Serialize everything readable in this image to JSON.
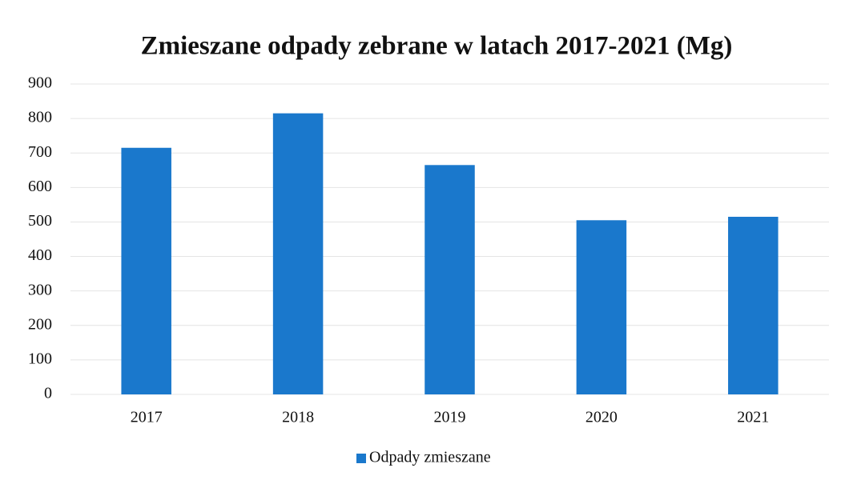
{
  "chart_data": {
    "type": "bar",
    "title": "Zmieszane odpady zebrane w latach 2017-2021 (Mg)",
    "categories": [
      "2017",
      "2018",
      "2019",
      "2020",
      "2021"
    ],
    "series": [
      {
        "name": "Odpady zmieszane",
        "color": "#1a78cc",
        "values": [
          715,
          815,
          665,
          505,
          515
        ]
      }
    ],
    "ylim": [
      0,
      900
    ],
    "yticks": [
      0,
      100,
      200,
      300,
      400,
      500,
      600,
      700,
      800,
      900
    ],
    "grid": true,
    "legend": "bottom"
  }
}
